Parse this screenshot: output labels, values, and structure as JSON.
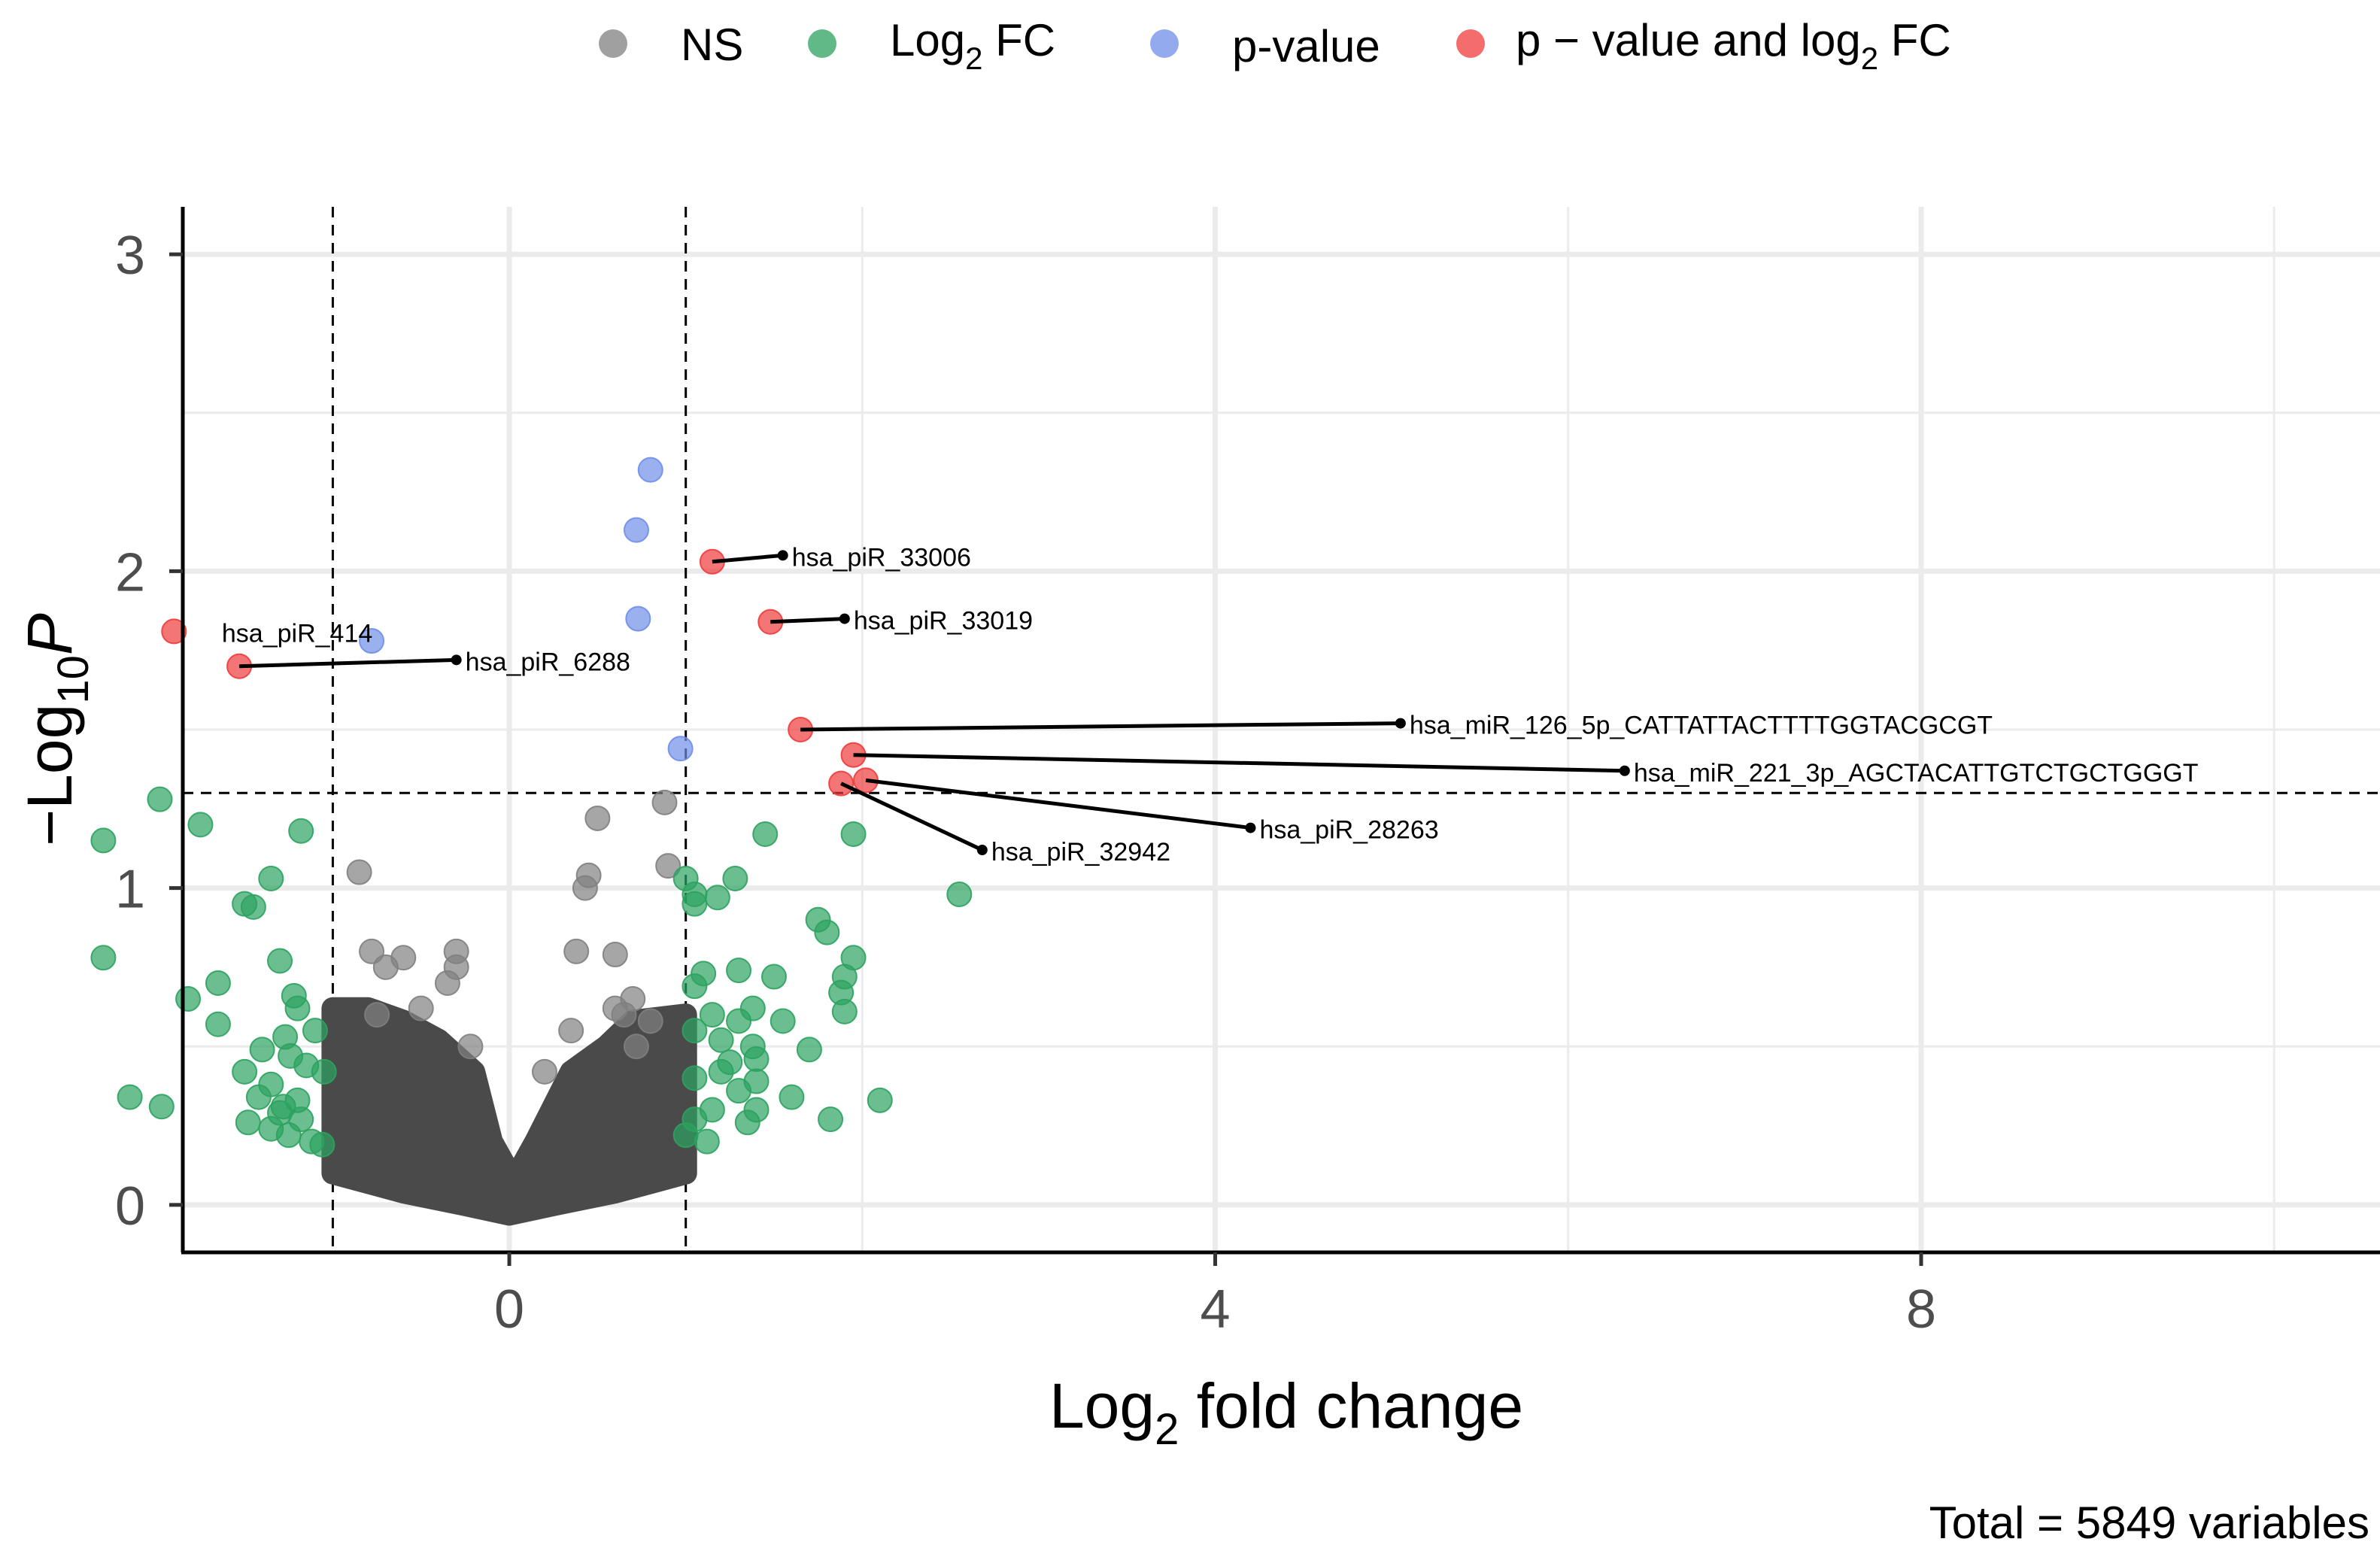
{
  "chart_data": {
    "type": "scatter",
    "title": "",
    "xlabel_main": "Log",
    "xlabel_sub": "2",
    "xlabel_rest": " fold change",
    "ylabel_prefix": "−Log",
    "ylabel_sub": "10",
    "ylabel_italic": "P",
    "xlim": [
      -1.85,
      10.6
    ],
    "ylim": [
      -0.15,
      3.15
    ],
    "x_ticks": [
      "0",
      "4",
      "8"
    ],
    "x_tick_values": [
      0,
      4,
      8
    ],
    "y_ticks": [
      "0",
      "1",
      "2",
      "3"
    ],
    "y_tick_values": [
      0,
      1,
      2,
      3
    ],
    "fc_cutoffs": [
      -1,
      1
    ],
    "p_cutoff": 1.3,
    "caption": "Total = 5849 variables",
    "colors": {
      "ns": "#808080",
      "fc": "#2ca25f",
      "p": "#6f8ee8",
      "both": "#f03b3b",
      "ns_dense": "#4a4a4a"
    },
    "legend": [
      {
        "key": "ns",
        "label": "NS",
        "label_sub": "",
        "label_rest": ""
      },
      {
        "key": "fc",
        "label": "Log",
        "label_sub": "2",
        "label_rest": " FC"
      },
      {
        "key": "p",
        "label": "p-value",
        "label_sub": "",
        "label_rest": ""
      },
      {
        "key": "both",
        "label": "p − value and log",
        "label_sub": "2",
        "label_rest": " FC"
      }
    ],
    "series": [
      {
        "name": "NS",
        "key": "ns",
        "points": [
          [
            -0.85,
            1.05
          ],
          [
            0.5,
            1.22
          ],
          [
            0.45,
            1.04
          ],
          [
            0.43,
            1.0
          ],
          [
            0.9,
            1.07
          ],
          [
            0.88,
            1.27
          ],
          [
            -0.78,
            0.8
          ],
          [
            -0.6,
            0.78
          ],
          [
            -0.3,
            0.8
          ],
          [
            -0.3,
            0.75
          ],
          [
            -0.7,
            0.75
          ],
          [
            -0.35,
            0.7
          ],
          [
            0.38,
            0.8
          ],
          [
            0.6,
            0.79
          ],
          [
            0.7,
            0.65
          ],
          [
            0.6,
            0.62
          ],
          [
            0.35,
            0.55
          ],
          [
            -0.22,
            0.5
          ],
          [
            -0.5,
            0.62
          ],
          [
            -0.75,
            0.6
          ],
          [
            0.8,
            0.58
          ],
          [
            0.65,
            0.6
          ],
          [
            0.72,
            0.5
          ],
          [
            0.2,
            0.42
          ]
        ]
      },
      {
        "name": "Log2 FC",
        "key": "fc",
        "points": [
          [
            -1.98,
            1.28
          ],
          [
            -2.3,
            1.15
          ],
          [
            -1.75,
            1.2
          ],
          [
            -1.18,
            1.18
          ],
          [
            -1.35,
            1.03
          ],
          [
            -1.5,
            0.95
          ],
          [
            -1.45,
            0.94
          ],
          [
            -2.3,
            0.78
          ],
          [
            -1.65,
            0.7
          ],
          [
            -1.82,
            0.65
          ],
          [
            -1.65,
            0.57
          ],
          [
            -1.3,
            0.77
          ],
          [
            -1.22,
            0.66
          ],
          [
            -1.2,
            0.62
          ],
          [
            -1.27,
            0.53
          ],
          [
            -1.1,
            0.55
          ],
          [
            -1.5,
            0.42
          ],
          [
            -1.35,
            0.38
          ],
          [
            -1.15,
            0.44
          ],
          [
            -1.05,
            0.42
          ],
          [
            -1.42,
            0.34
          ],
          [
            -1.28,
            0.31
          ],
          [
            -1.18,
            0.27
          ],
          [
            -1.2,
            0.33
          ],
          [
            -2.15,
            0.34
          ],
          [
            -1.97,
            0.31
          ],
          [
            -1.48,
            0.26
          ],
          [
            -1.35,
            0.24
          ],
          [
            -1.25,
            0.22
          ],
          [
            -1.12,
            0.2
          ],
          [
            -1.06,
            0.19
          ],
          [
            -1.3,
            0.29
          ],
          [
            -1.4,
            0.49
          ],
          [
            -1.24,
            0.47
          ],
          [
            1.0,
            1.03
          ],
          [
            1.05,
            0.98
          ],
          [
            1.18,
            0.97
          ],
          [
            1.28,
            1.03
          ],
          [
            1.05,
            0.95
          ],
          [
            1.45,
            1.17
          ],
          [
            1.95,
            1.17
          ],
          [
            2.55,
            0.98
          ],
          [
            1.75,
            0.9
          ],
          [
            1.8,
            0.86
          ],
          [
            1.95,
            0.78
          ],
          [
            1.9,
            0.72
          ],
          [
            1.88,
            0.67
          ],
          [
            1.9,
            0.61
          ],
          [
            1.5,
            0.72
          ],
          [
            1.3,
            0.74
          ],
          [
            1.1,
            0.73
          ],
          [
            1.05,
            0.69
          ],
          [
            1.38,
            0.62
          ],
          [
            1.3,
            0.58
          ],
          [
            1.15,
            0.6
          ],
          [
            1.05,
            0.55
          ],
          [
            1.2,
            0.52
          ],
          [
            1.38,
            0.5
          ],
          [
            1.7,
            0.49
          ],
          [
            1.4,
            0.46
          ],
          [
            1.2,
            0.42
          ],
          [
            1.05,
            0.4
          ],
          [
            1.3,
            0.36
          ],
          [
            1.6,
            0.34
          ],
          [
            1.4,
            0.3
          ],
          [
            1.35,
            0.26
          ],
          [
            1.15,
            0.3
          ],
          [
            1.05,
            0.27
          ],
          [
            1.0,
            0.22
          ],
          [
            1.12,
            0.2
          ],
          [
            1.82,
            0.27
          ],
          [
            2.1,
            0.33
          ],
          [
            1.4,
            0.39
          ],
          [
            1.25,
            0.45
          ],
          [
            1.55,
            0.58
          ]
        ]
      },
      {
        "name": "p-value",
        "key": "p",
        "points": [
          [
            0.8,
            2.32
          ],
          [
            0.72,
            2.13
          ],
          [
            0.73,
            1.85
          ],
          [
            -0.78,
            1.78
          ],
          [
            0.97,
            1.44
          ]
        ]
      },
      {
        "name": "p − value and log2 FC",
        "key": "both",
        "points": [
          [
            -1.9,
            1.81
          ],
          [
            -1.53,
            1.7
          ],
          [
            1.15,
            2.03
          ],
          [
            1.48,
            1.84
          ],
          [
            1.65,
            1.5
          ],
          [
            1.95,
            1.42
          ],
          [
            1.88,
            1.33
          ],
          [
            2.02,
            1.34
          ]
        ]
      }
    ],
    "ns_cloud": {
      "x_min": -1.0,
      "x_max": 1.0,
      "y_floor": 0.0,
      "y_top_left": 0.62,
      "y_top_right": 0.6
    },
    "annotations": [
      {
        "label": "hsa_piR_33006",
        "point": [
          1.15,
          2.03
        ],
        "text_pos": [
          1.55,
          2.05
        ],
        "arrow": true
      },
      {
        "label": "hsa_piR_33019",
        "point": [
          1.48,
          1.84
        ],
        "text_pos": [
          1.9,
          1.85
        ],
        "arrow": true
      },
      {
        "label": "hsa_piR_414",
        "point": [
          -1.9,
          1.81
        ],
        "text_pos": [
          -1.68,
          1.81
        ],
        "arrow": false
      },
      {
        "label": "hsa_piR_6288",
        "point": [
          -1.53,
          1.7
        ],
        "text_pos": [
          -0.3,
          1.72
        ],
        "arrow": true
      },
      {
        "label": "hsa_miR_126_5p_CATTATTACTTTTGGTACGCGT",
        "point": [
          1.65,
          1.5
        ],
        "text_pos": [
          5.05,
          1.52
        ],
        "arrow": true
      },
      {
        "label": "hsa_miR_221_3p_AGCTACATTGTCTGCTGGGT",
        "point": [
          1.95,
          1.42
        ],
        "text_pos": [
          6.32,
          1.37
        ],
        "arrow": true
      },
      {
        "label": "hsa_piR_28263",
        "point": [
          2.02,
          1.34
        ],
        "text_pos": [
          4.2,
          1.19
        ],
        "arrow": true
      },
      {
        "label": "hsa_piR_32942",
        "point": [
          1.88,
          1.33
        ],
        "text_pos": [
          2.68,
          1.12
        ],
        "arrow": true
      }
    ]
  }
}
